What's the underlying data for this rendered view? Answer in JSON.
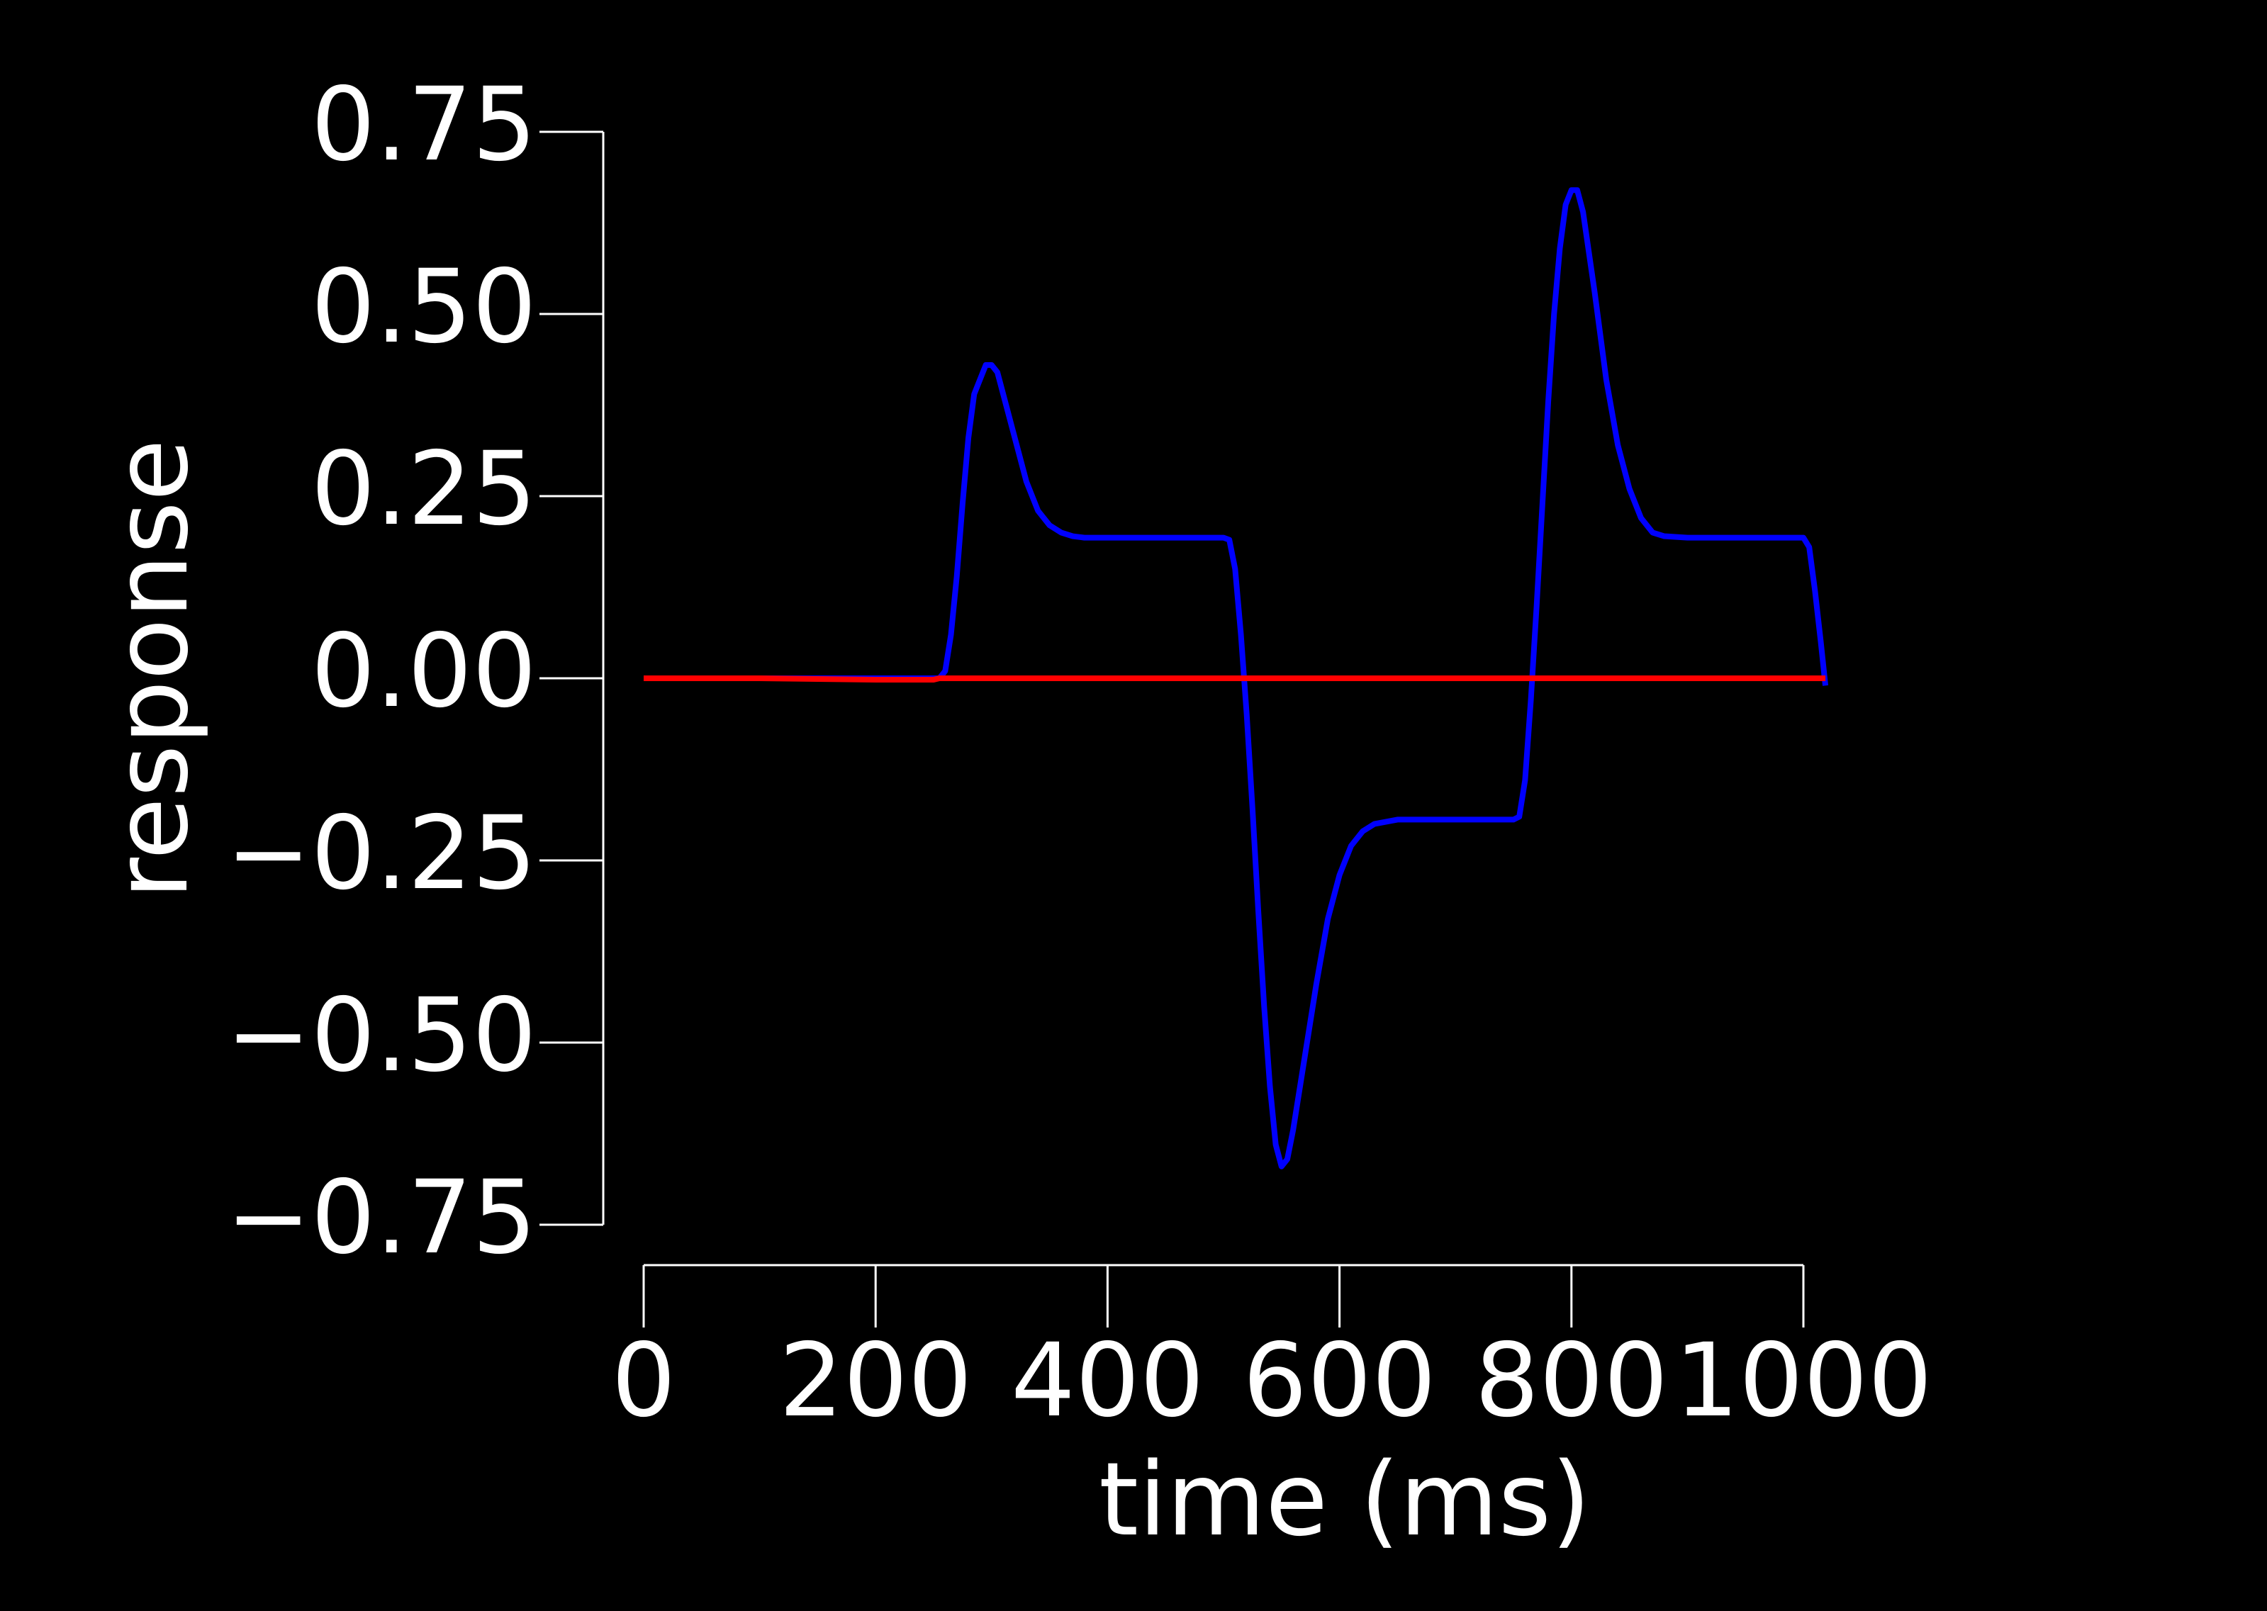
{
  "chart_data": {
    "type": "line",
    "x_label": "time (ms)",
    "y_label": "response",
    "x": [
      0,
      100,
      200,
      250,
      255,
      260,
      265,
      270,
      275,
      280,
      285,
      290,
      295,
      300,
      305,
      310,
      320,
      330,
      340,
      350,
      360,
      370,
      380,
      400,
      450,
      500,
      505,
      510,
      515,
      520,
      525,
      530,
      535,
      540,
      545,
      550,
      555,
      560,
      570,
      580,
      590,
      600,
      610,
      620,
      630,
      650,
      700,
      750,
      755,
      760,
      765,
      770,
      775,
      780,
      785,
      790,
      795,
      800,
      805,
      810,
      820,
      830,
      840,
      850,
      860,
      870,
      880,
      900,
      950,
      1000,
      1005,
      1010,
      1015,
      1019
    ],
    "series": [
      {
        "name": "blue",
        "color": "#0000ff",
        "values": [
          0,
          0,
          0,
          0,
          0,
          0.01,
          0.06,
          0.14,
          0.24,
          0.33,
          0.39,
          0.41,
          0.43,
          0.43,
          0.42,
          0.39,
          0.33,
          0.27,
          0.23,
          0.21,
          0.2,
          0.195,
          0.193,
          0.193,
          0.193,
          0.193,
          0.19,
          0.15,
          0.06,
          -0.05,
          -0.18,
          -0.32,
          -0.45,
          -0.56,
          -0.64,
          -0.67,
          -0.66,
          -0.62,
          -0.52,
          -0.42,
          -0.33,
          -0.27,
          -0.23,
          -0.21,
          -0.2,
          -0.194,
          -0.194,
          -0.194,
          -0.19,
          -0.14,
          -0.03,
          0.1,
          0.24,
          0.38,
          0.5,
          0.59,
          0.65,
          0.67,
          0.67,
          0.64,
          0.53,
          0.41,
          0.32,
          0.26,
          0.22,
          0.2,
          0.195,
          0.193,
          0.193,
          0.193,
          0.18,
          0.12,
          0.05,
          -0.01
        ]
      },
      {
        "name": "red",
        "color": "#ff0000",
        "values": [
          0,
          0,
          -0.002,
          -0.002,
          0,
          0,
          0,
          0,
          0,
          0,
          0,
          0,
          0,
          0,
          0,
          0,
          0,
          0,
          0,
          0,
          0,
          0,
          0,
          0,
          0,
          0,
          0,
          0,
          0,
          0,
          0,
          0,
          0,
          0,
          0,
          0,
          0,
          0,
          0,
          0,
          0,
          0,
          0,
          0,
          0,
          0,
          0,
          0,
          0,
          0,
          0,
          0,
          0,
          0,
          0,
          0,
          0,
          0,
          0,
          0,
          0,
          0,
          0,
          0,
          0,
          0,
          0,
          0,
          0,
          0,
          0,
          0,
          0,
          0
        ]
      }
    ],
    "xlim": [
      0,
      1000
    ],
    "xticks": [
      0,
      200,
      400,
      600,
      800,
      1000
    ],
    "ylim": [
      -0.75,
      0.75
    ],
    "yticks": [
      {
        "value": -0.75,
        "label": "−0.75"
      },
      {
        "value": -0.5,
        "label": "−0.50"
      },
      {
        "value": -0.25,
        "label": "−0.25"
      },
      {
        "value": 0,
        "label": "0.00"
      },
      0.25,
      {
        "value": 0.5,
        "label": "0.50"
      },
      0.75
    ]
  }
}
